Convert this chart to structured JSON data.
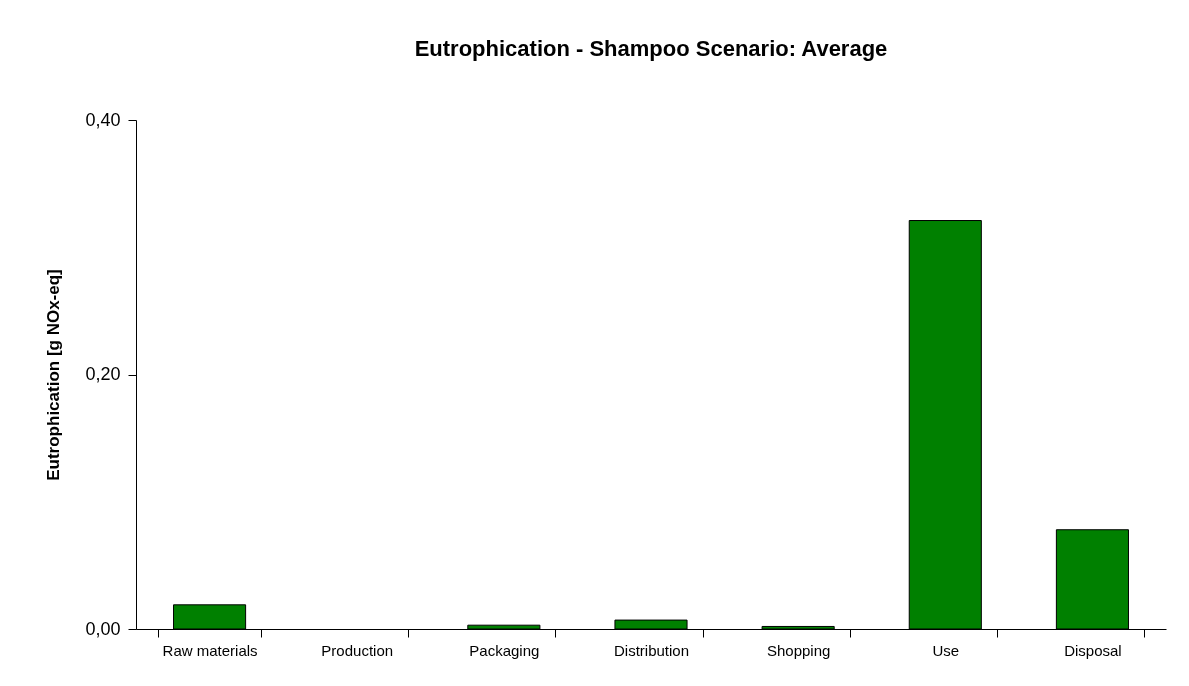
{
  "chart_data": {
    "type": "bar",
    "title": "Eutrophication - Shampoo Scenario: Average",
    "ylabel": "Eutrophication [g NOx-eq]",
    "categories": [
      "Raw materials",
      "Production",
      "Packaging",
      "Distribution",
      "Shopping",
      "Use",
      "Disposal"
    ],
    "values": [
      0.019,
      0,
      0.003,
      0.007,
      0.002,
      0.321,
      0.078
    ],
    "color": "#008000",
    "ylim": [
      0,
      0.4
    ],
    "yticks": [
      {
        "value": 0,
        "label": "0,00"
      },
      {
        "value": 0.2,
        "label": "0,20"
      },
      {
        "value": 0.4,
        "label": "0,40"
      }
    ],
    "grid": false
  }
}
